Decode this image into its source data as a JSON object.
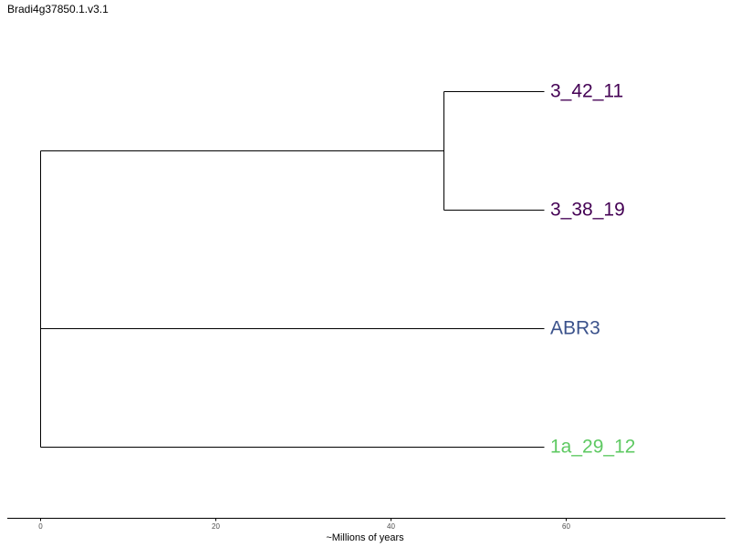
{
  "title": "Bradi4g37850.1.v3.1",
  "chart_data": {
    "type": "phylogenetic-tree",
    "xlabel": "~Millions of years",
    "xlim": [
      -3.7,
      78.2
    ],
    "xticks": [
      0,
      20,
      40,
      60
    ],
    "tips": [
      {
        "id": "t1",
        "label": "3_42_11",
        "depth": 57.5,
        "color": "#440154"
      },
      {
        "id": "t2",
        "label": "3_38_19",
        "depth": 57.5,
        "color": "#440154"
      },
      {
        "id": "t3",
        "label": "ABR3",
        "depth": 57.5,
        "color": "#3b528b"
      },
      {
        "id": "t4",
        "label": "1a_29_12",
        "depth": 57.5,
        "color": "#5ec962"
      }
    ],
    "nodes": [
      {
        "id": "n1",
        "depth": 46.0,
        "children": [
          "t1",
          "t2"
        ]
      },
      {
        "id": "root",
        "depth": 0.0,
        "children": [
          "n1",
          "t3",
          "t4"
        ]
      }
    ],
    "root": "root"
  }
}
